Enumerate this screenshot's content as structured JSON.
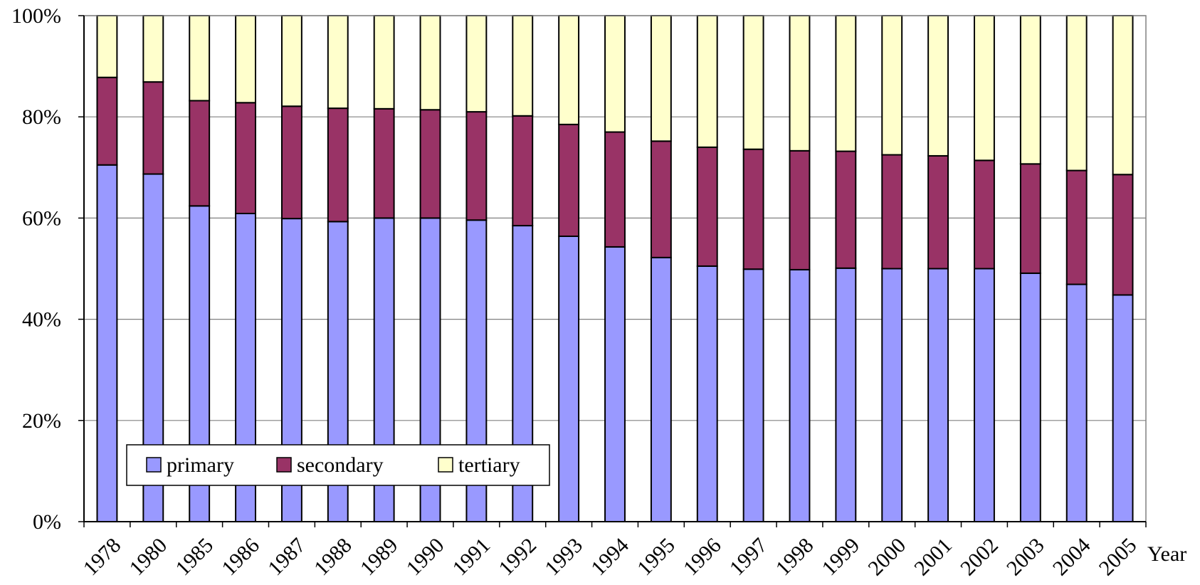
{
  "chart_data": {
    "type": "bar",
    "stacked": true,
    "normalized": true,
    "title": "",
    "xlabel": "Year",
    "ylabel": "",
    "ylim": [
      0,
      100
    ],
    "yticks": [
      "0%",
      "20%",
      "40%",
      "60%",
      "80%",
      "100%"
    ],
    "grid": true,
    "legend_position": "bottom-left",
    "categories": [
      "1978",
      "1980",
      "1985",
      "1986",
      "1987",
      "1988",
      "1989",
      "1990",
      "1991",
      "1992",
      "1993",
      "1994",
      "1995",
      "1996",
      "1997",
      "1998",
      "1999",
      "2000",
      "2001",
      "2002",
      "2003",
      "2004",
      "2005"
    ],
    "series": [
      {
        "name": "primary",
        "color": "#9999ff",
        "values": [
          70.5,
          68.7,
          62.4,
          60.9,
          59.9,
          59.3,
          60.0,
          60.0,
          59.6,
          58.5,
          56.4,
          54.3,
          52.2,
          50.5,
          49.9,
          49.8,
          50.1,
          50.0,
          50.0,
          50.0,
          49.1,
          46.9,
          44.8
        ]
      },
      {
        "name": "secondary",
        "color": "#993366",
        "values": [
          17.3,
          18.2,
          20.8,
          21.9,
          22.2,
          22.4,
          21.6,
          21.4,
          21.4,
          21.7,
          22.1,
          22.7,
          23.0,
          23.5,
          23.7,
          23.5,
          23.1,
          22.5,
          22.3,
          21.4,
          21.6,
          22.5,
          23.8
        ]
      },
      {
        "name": "tertiary",
        "color": "#ffffcc",
        "values": [
          12.2,
          13.1,
          16.8,
          17.2,
          17.9,
          18.3,
          18.4,
          18.6,
          19.0,
          19.8,
          21.5,
          23.0,
          24.8,
          26.0,
          26.4,
          26.7,
          26.8,
          27.5,
          27.7,
          28.6,
          29.3,
          30.6,
          31.4
        ]
      }
    ]
  }
}
